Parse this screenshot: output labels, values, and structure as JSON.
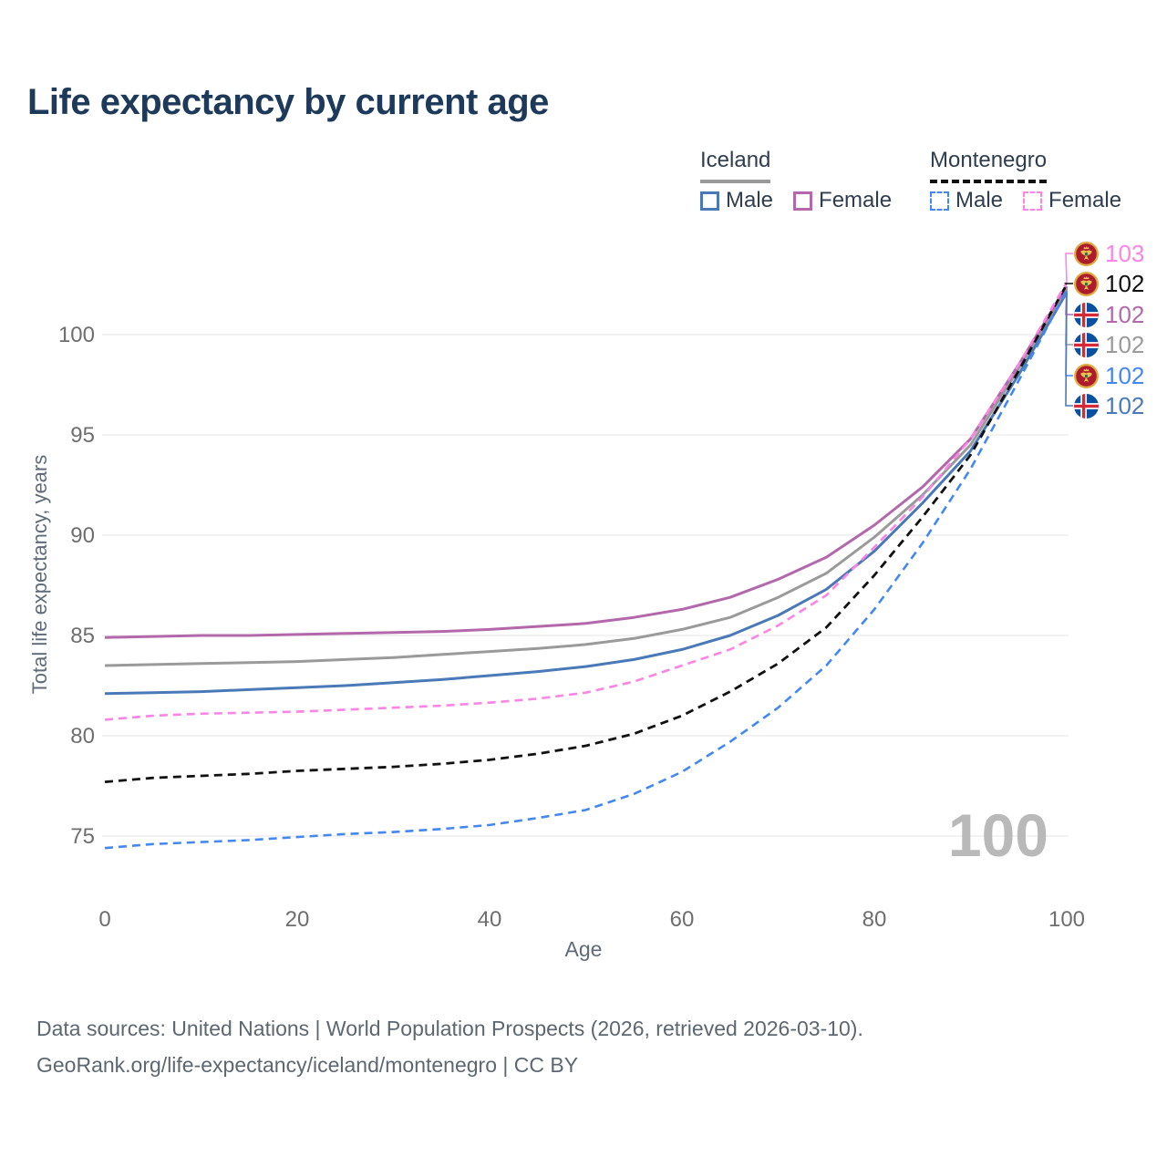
{
  "title": "Life expectancy by current age",
  "watermark": "100",
  "legend": {
    "groups": [
      {
        "label": "Iceland",
        "underline_style": "solid",
        "underline_color": "#9a9a9a",
        "items": [
          {
            "label": "Male",
            "color": "#4a79b8",
            "style": "solid"
          },
          {
            "label": "Female",
            "color": "#b268ab",
            "style": "solid"
          }
        ]
      },
      {
        "label": "Montenegro",
        "underline_style": "dashed",
        "underline_color": "#111111",
        "items": [
          {
            "label": "Male",
            "color": "#4388f0",
            "style": "dashed"
          },
          {
            "label": "Female",
            "color": "#fb84e4",
            "style": "dashed"
          }
        ]
      }
    ]
  },
  "chart_data": {
    "type": "line",
    "title": "Life expectancy by current age",
    "xlabel": "Age",
    "ylabel": "Total life expectancy, years",
    "x_ticks": [
      0,
      20,
      40,
      60,
      80,
      100
    ],
    "y_ticks": [
      75,
      80,
      85,
      90,
      95,
      100
    ],
    "xlim": [
      0,
      100
    ],
    "ylim": [
      73.5,
      103.5
    ],
    "grid": "horizontal-only",
    "gridline_color": "#e9e9e9",
    "axis_text_color": "#6e6e6e",
    "ages": [
      0,
      5,
      10,
      15,
      20,
      25,
      30,
      35,
      40,
      45,
      50,
      55,
      60,
      65,
      70,
      75,
      80,
      85,
      90,
      95,
      100
    ],
    "series": [
      {
        "name": "Iceland Male",
        "country": "Iceland",
        "sex": "Male",
        "style": "solid",
        "color": "#4a79b8",
        "width": 3,
        "values": [
          82.1,
          82.15,
          82.2,
          82.3,
          82.4,
          82.5,
          82.65,
          82.8,
          83.0,
          83.2,
          83.45,
          83.8,
          84.3,
          85.0,
          86.0,
          87.3,
          89.2,
          91.6,
          94.2,
          98.0,
          102.1
        ]
      },
      {
        "name": "Iceland Female",
        "country": "Iceland",
        "sex": "Female",
        "style": "solid",
        "color": "#b268ab",
        "width": 3,
        "values": [
          84.9,
          84.95,
          85.0,
          85.0,
          85.05,
          85.1,
          85.15,
          85.2,
          85.3,
          85.45,
          85.6,
          85.9,
          86.3,
          86.9,
          87.8,
          88.9,
          90.5,
          92.4,
          94.8,
          98.5,
          102.4
        ]
      },
      {
        "name": "Iceland Both sexes",
        "country": "Iceland",
        "sex": "Both",
        "style": "solid",
        "color": "#9a9a9a",
        "width": 3,
        "values": [
          83.5,
          83.55,
          83.6,
          83.65,
          83.7,
          83.8,
          83.9,
          84.05,
          84.2,
          84.35,
          84.55,
          84.85,
          85.3,
          85.9,
          86.9,
          88.1,
          89.9,
          92.0,
          94.5,
          98.3,
          102.3
        ]
      },
      {
        "name": "Montenegro Male",
        "country": "Montenegro",
        "sex": "Male",
        "style": "dashed",
        "color": "#4388f0",
        "width": 2.6,
        "values": [
          74.4,
          74.6,
          74.7,
          74.8,
          74.95,
          75.1,
          75.2,
          75.35,
          75.55,
          75.9,
          76.3,
          77.1,
          78.2,
          79.7,
          81.4,
          83.5,
          86.3,
          89.6,
          93.3,
          97.7,
          102.2
        ]
      },
      {
        "name": "Montenegro Female",
        "country": "Montenegro",
        "sex": "Female",
        "style": "dashed",
        "color": "#fb84e4",
        "width": 2.6,
        "values": [
          80.8,
          81.0,
          81.1,
          81.15,
          81.2,
          81.3,
          81.4,
          81.5,
          81.65,
          81.85,
          82.15,
          82.7,
          83.5,
          84.3,
          85.5,
          87.0,
          89.4,
          91.9,
          94.8,
          98.5,
          102.6
        ]
      },
      {
        "name": "Montenegro Both sexes",
        "country": "Montenegro",
        "sex": "Both",
        "style": "dashed",
        "color": "#111111",
        "width": 2.8,
        "values": [
          77.7,
          77.9,
          78.0,
          78.1,
          78.25,
          78.35,
          78.45,
          78.6,
          78.8,
          79.1,
          79.5,
          80.1,
          81.0,
          82.2,
          83.6,
          85.4,
          88.0,
          90.9,
          94.0,
          98.2,
          102.5
        ]
      }
    ]
  },
  "end_labels": [
    {
      "flag": "montenegro",
      "series_index": 4,
      "value": "103",
      "color": "#fb84e4"
    },
    {
      "flag": "montenegro",
      "series_index": 5,
      "value": "102",
      "color": "#111111"
    },
    {
      "flag": "iceland",
      "series_index": 1,
      "value": "102",
      "color": "#b268ab"
    },
    {
      "flag": "iceland",
      "series_index": 2,
      "value": "102",
      "color": "#9a9a9a"
    },
    {
      "flag": "montenegro",
      "series_index": 3,
      "value": "102",
      "color": "#4388f0"
    },
    {
      "flag": "iceland",
      "series_index": 0,
      "value": "102",
      "color": "#4a79b8"
    }
  ],
  "footer": {
    "line1": "Data sources: United Nations | World Population Prospects (2026, retrieved 2026-03-10).",
    "line2": "GeoRank.org/life-expectancy/iceland/montenegro | CC BY"
  }
}
